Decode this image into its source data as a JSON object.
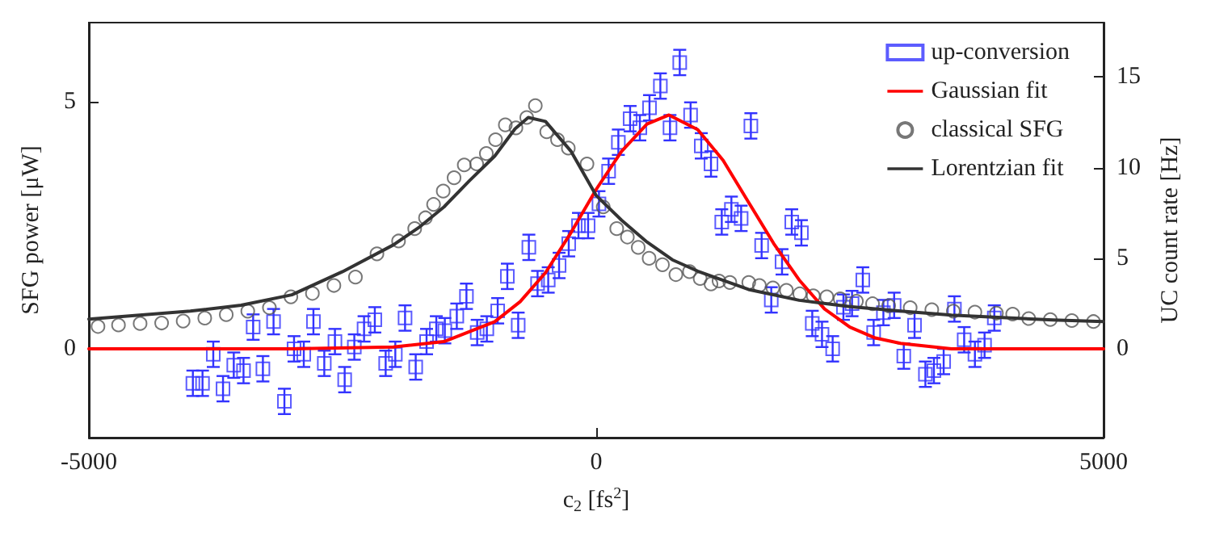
{
  "chart_data": {
    "type": "scatter",
    "xlabel": "c$_{2}$ [fs$^{2}$]",
    "ylabel": "SFG power [μW]",
    "y2label": "UC count rate [Hz]",
    "xlim": [
      -5000,
      5000
    ],
    "xticks": [
      -5000,
      0,
      5000
    ],
    "ylim": [
      -1.8,
      6.6
    ],
    "yticks": [
      0,
      5
    ],
    "y2lim": [
      -4.9,
      18
    ],
    "y2ticks": [
      0,
      5,
      10,
      15
    ],
    "legend": "top right",
    "grid": false,
    "series": [
      {
        "name": "up-conversion",
        "axis": "y2",
        "marker": "square",
        "color": "#3333ff",
        "x": [
          -3975,
          -3880,
          -3774,
          -3678,
          -3572,
          -3476,
          -3381,
          -3285,
          -3180,
          -3073,
          -2978,
          -2882,
          -2787,
          -2680,
          -2575,
          -2479,
          -2384,
          -2288,
          -2182,
          -2075,
          -1980,
          -1884,
          -1779,
          -1672,
          -1576,
          -1492,
          -1374,
          -1279,
          -1173,
          -1078,
          -971,
          -876,
          -769,
          -664,
          -578,
          -473,
          -366,
          -271,
          -175,
          -80,
          27,
          122,
          218,
          334,
          430,
          525,
          632,
          727,
          823,
          930,
          1035,
          1131,
          1237,
          1332,
          1428,
          1524,
          1630,
          1725,
          1831,
          1927,
          2022,
          2129,
          2225,
          2330,
          2436,
          2521,
          2627,
          2734,
          2830,
          2936,
          3031,
          3137,
          3244,
          3328,
          3424,
          3530,
          3626,
          3732,
          3827,
          3923
        ],
        "values": [
          -1.9,
          -1.9,
          -0.3,
          -2.2,
          -0.9,
          -1.2,
          1.2,
          -1.1,
          1.5,
          -2.9,
          0,
          -0.3,
          1.5,
          -0.8,
          0.4,
          -1.7,
          0.1,
          1.1,
          1.6,
          -0.8,
          -0.3,
          1.7,
          -1,
          0.4,
          1.1,
          1.0,
          1.8,
          2.9,
          0.9,
          1.1,
          2.1,
          4.0,
          1.3,
          5.6,
          3.6,
          3.8,
          4.6,
          5.8,
          6.8,
          6.8,
          8.0,
          9.8,
          11.4,
          12.7,
          12.2,
          13.3,
          14.5,
          12.2,
          15.8,
          12.9,
          11.2,
          10.2,
          7.0,
          7.7,
          7.2,
          12.3,
          5.7,
          2.7,
          4.8,
          7.0,
          6.4,
          1.4,
          0.8,
          0,
          2.3,
          2.5,
          3.8,
          0.9,
          2.0,
          2.4,
          -0.4,
          1.3,
          -1.4,
          -1.2,
          -0.7,
          2.2,
          0.5,
          -0.3,
          0.2,
          1.7
        ],
        "errors": [
          0.7,
          0.7,
          0.7,
          0.7,
          0.7,
          0.7,
          0.7,
          0.7,
          0.7,
          0.7,
          0.7,
          0.7,
          0.7,
          0.7,
          0.7,
          0.7,
          0.7,
          0.7,
          0.7,
          0.7,
          0.7,
          0.7,
          0.7,
          0.7,
          0.7,
          0.7,
          0.7,
          0.7,
          0.7,
          0.7,
          0.7,
          0.7,
          0.7,
          0.7,
          0.7,
          0.7,
          0.7,
          0.7,
          0.7,
          0.7,
          0.7,
          0.7,
          0.7,
          0.7,
          0.7,
          0.7,
          0.7,
          0.7,
          0.7,
          0.7,
          0.7,
          0.7,
          0.7,
          0.7,
          0.7,
          0.7,
          0.7,
          0.7,
          0.7,
          0.7,
          0.7,
          0.7,
          0.7,
          0.7,
          0.7,
          0.7,
          0.7,
          0.7,
          0.7,
          0.7,
          0.7,
          0.7,
          0.7,
          0.7,
          0.7,
          0.7,
          0.7,
          0.7,
          0.7,
          0.7
        ]
      },
      {
        "name": "Gaussian fit",
        "type": "line",
        "axis": "y2",
        "marker": "none",
        "line_style": "solid",
        "color": "#ff0000",
        "x": [
          -5000,
          -3000,
          -2000,
          -1500,
          -1000,
          -750,
          -500,
          -250,
          0,
          250,
          500,
          717,
          1000,
          1250,
          1500,
          1750,
          2000,
          2250,
          2500,
          2750,
          3000,
          3500,
          5000
        ],
        "values": [
          0,
          0,
          0.1,
          0.4,
          1.5,
          2.6,
          4.2,
          6.4,
          8.8,
          10.9,
          12.4,
          12.9,
          12.1,
          10.4,
          8.1,
          5.8,
          3.8,
          2.2,
          1.2,
          0.6,
          0.3,
          0,
          0
        ]
      },
      {
        "name": "classical SFG",
        "axis": "y",
        "marker": "circle",
        "color": "#555555",
        "x": [
          -4910,
          -4708,
          -4495,
          -4283,
          -4071,
          -3858,
          -3646,
          -3434,
          -3221,
          -3009,
          -2797,
          -2585,
          -2373,
          -2161,
          -1948,
          -1789,
          -1683,
          -1603,
          -1508,
          -1401,
          -1301,
          -1178,
          -1083,
          -992,
          -896,
          -791,
          -685,
          -600,
          -488,
          -382,
          -275,
          -91,
          69,
          202,
          307,
          414,
          521,
          653,
          785,
          919,
          1024,
          1131,
          1210,
          1317,
          1503,
          1608,
          1741,
          1874,
          2006,
          2139,
          2272,
          2404,
          2564,
          2723,
          2882,
          3094,
          3307,
          3519,
          3732,
          3944,
          4104,
          4262,
          4475,
          4687,
          4900
        ],
        "values": [
          0.45,
          0.48,
          0.51,
          0.52,
          0.56,
          0.62,
          0.69,
          0.76,
          0.83,
          1.05,
          1.12,
          1.28,
          1.45,
          1.92,
          2.18,
          2.43,
          2.65,
          2.92,
          3.19,
          3.46,
          3.72,
          3.74,
          3.95,
          4.23,
          4.53,
          4.47,
          4.68,
          4.92,
          4.39,
          4.23,
          4.06,
          3.74,
          2.87,
          2.43,
          2.26,
          2.05,
          1.83,
          1.7,
          1.5,
          1.56,
          1.42,
          1.31,
          1.37,
          1.34,
          1.34,
          1.28,
          1.23,
          1.18,
          1.11,
          1.07,
          1.05,
          1.01,
          0.96,
          0.91,
          0.87,
          0.83,
          0.79,
          0.76,
          0.74,
          0.72,
          0.7,
          0.61,
          0.59,
          0.57,
          0.55
        ]
      },
      {
        "name": "Lorentzian fit",
        "type": "line",
        "axis": "y",
        "marker": "none",
        "line_style": "solid",
        "color": "#333333",
        "x": [
          -5000,
          -4500,
          -4000,
          -3500,
          -3000,
          -2500,
          -2000,
          -1750,
          -1500,
          -1250,
          -1000,
          -800,
          -670,
          -500,
          -250,
          0,
          250,
          500,
          750,
          1000,
          1500,
          2000,
          2500,
          3000,
          3500,
          4000,
          4500,
          5000
        ],
        "values": [
          0.6,
          0.68,
          0.76,
          0.88,
          1.09,
          1.56,
          2.1,
          2.45,
          2.87,
          3.4,
          3.9,
          4.45,
          4.68,
          4.6,
          4.0,
          3.1,
          2.6,
          2.16,
          1.8,
          1.57,
          1.2,
          0.98,
          0.85,
          0.76,
          0.68,
          0.63,
          0.58,
          0.55
        ]
      }
    ]
  }
}
